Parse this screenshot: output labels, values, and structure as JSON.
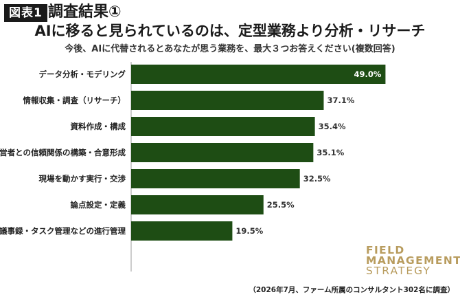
{
  "figure_label": "図表1",
  "title_line1": "調査結果①",
  "title_line2": "AIに移ると見られているのは、定型業務より分析・リサーチ",
  "subtitle": "今後、AIに代替されるとあなたが思う業務を、最大３つお答えください(複数回答)",
  "brand": {
    "line1": "FIELD",
    "line2": "MANAGEMENT",
    "line3": "STRATEGY"
  },
  "source_note": "（2026年7月、ファーム所属のコンサルタント302名に調査）",
  "colors": {
    "bar": "#1e4d14",
    "brand": "#b89c5e"
  },
  "chart_data": {
    "type": "bar",
    "orientation": "horizontal",
    "categories": [
      "データ分析・モデリング",
      "情報収集・調査（リサーチ）",
      "資料作成・構成",
      "経営者との信頼関係の構築・合意形成",
      "現場を動かす実行・交渉",
      "論点設定・定義",
      "議事録・タスク管理などの進行管理"
    ],
    "values": [
      49.0,
      37.1,
      35.4,
      35.1,
      32.5,
      25.5,
      19.5
    ],
    "value_labels": [
      "49.0%",
      "37.1%",
      "35.4%",
      "35.1%",
      "32.5%",
      "25.5%",
      "19.5%"
    ],
    "xlim": [
      0,
      50
    ],
    "grid": false,
    "legend": "none"
  }
}
